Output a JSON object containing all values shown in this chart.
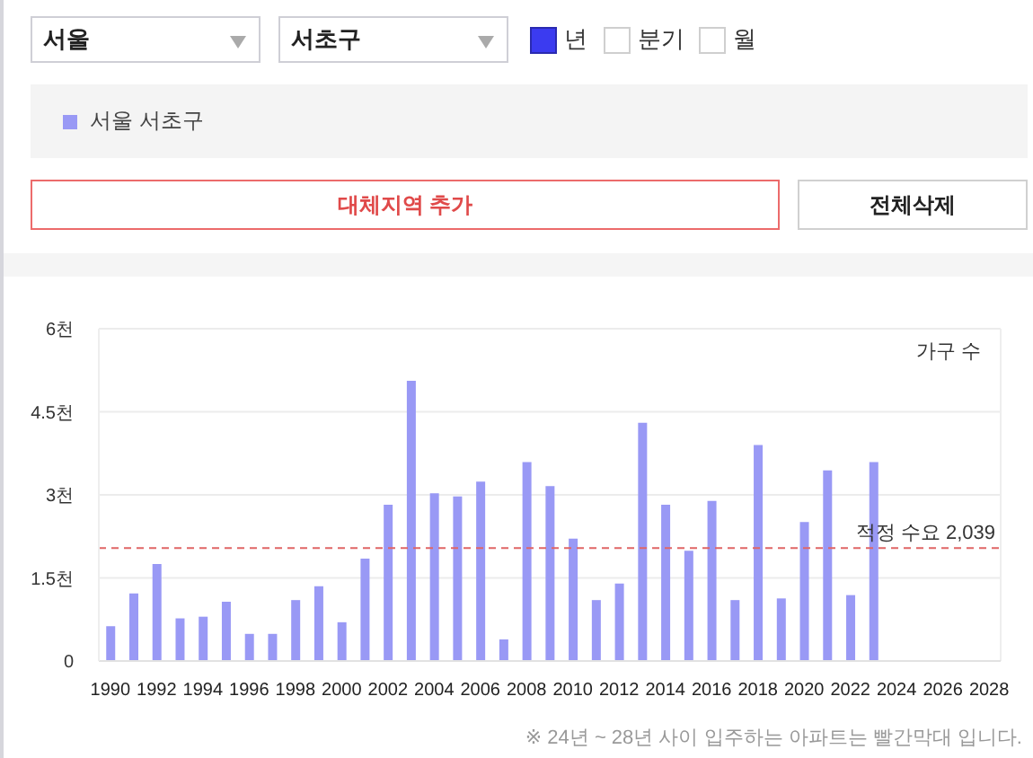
{
  "chart_data": {
    "type": "bar",
    "categories": [
      "1990",
      null,
      "1992",
      null,
      "1994",
      null,
      "1996",
      null,
      "1998",
      null,
      "2000",
      null,
      "2002",
      null,
      "2004",
      null,
      "2006",
      null,
      "2008",
      null,
      "2010",
      null,
      "2012",
      null,
      "2014",
      null,
      "2016",
      null,
      "2018",
      null,
      "2020",
      null,
      "2022",
      null,
      "2024",
      null,
      "2026",
      null,
      "2028"
    ],
    "series": [
      {
        "name": "서울 서초구",
        "color": "#9999f5",
        "values": [
          0.63,
          1.22,
          1.75,
          0.77,
          0.8,
          1.07,
          0.49,
          0.49,
          1.1,
          1.35,
          0.7,
          1.85,
          2.82,
          5.06,
          3.03,
          2.97,
          3.24,
          0.39,
          3.59,
          3.16,
          2.21,
          1.1,
          1.4,
          4.3,
          2.82,
          1.99,
          2.89,
          1.1,
          3.9,
          1.13,
          2.51,
          3.44,
          1.19,
          3.59,
          null,
          null,
          null,
          null,
          null
        ]
      }
    ],
    "ylim": [
      0,
      6
    ],
    "yticks": [
      0,
      {
        "value": 1.5,
        "label": "1.5천"
      },
      {
        "value": 3,
        "label": "3천"
      },
      {
        "value": 4.5,
        "label": "4.5천"
      },
      {
        "value": 6,
        "label": "6천"
      }
    ],
    "ylabel": "가구 수",
    "grid": "y",
    "legend": "top left",
    "ref_lines": [
      {
        "axis": "y",
        "value": 2.039,
        "label": "적정 수요 2,039",
        "color": "#e06666",
        "line_style": "dashed"
      }
    ],
    "annotations": [
      "※ 24년 ~ 28년 사이 입주하는 아파트는 빨간막대 입니다.",
      "서울",
      "서초구",
      "년",
      "분기",
      "월",
      "대체지역 추가",
      "전체삭제"
    ]
  }
}
